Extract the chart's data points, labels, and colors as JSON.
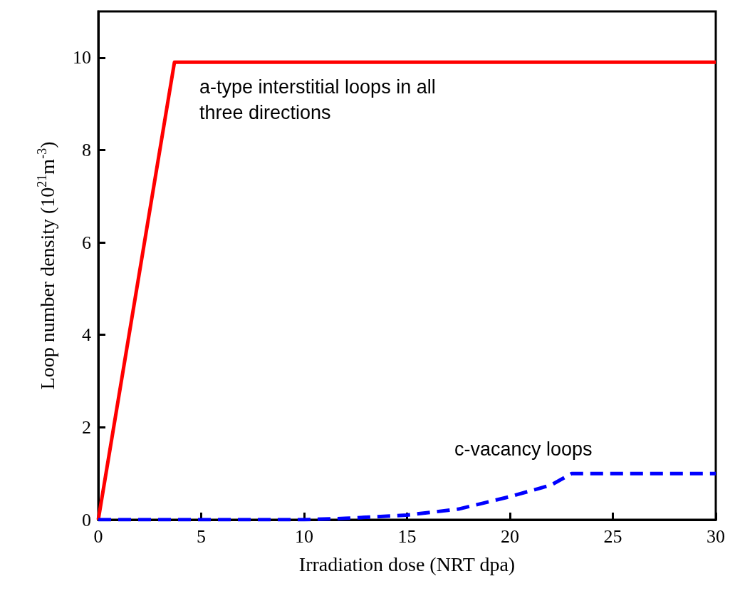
{
  "chart_data": {
    "type": "line",
    "xlabel": "Irradiation dose (NRT dpa)",
    "ylabel": "Loop number density (10$^{21}$m$^{-3}$)",
    "xlim": [
      0,
      30
    ],
    "xticks": [
      0,
      5,
      10,
      15,
      20,
      25,
      30
    ],
    "ylim": [
      0,
      11
    ],
    "yticks": [
      0,
      2,
      4,
      6,
      8,
      10
    ],
    "marker": "none",
    "series": [
      {
        "color": "#ff0000",
        "line_style": "solid",
        "x": [
          0,
          3.7,
          30
        ],
        "values": [
          0,
          9.9,
          9.9
        ]
      },
      {
        "color": "#0000ff",
        "line_style": "dashed",
        "x": [
          0,
          5,
          10,
          12,
          15,
          17.5,
          20,
          22,
          23,
          30
        ],
        "values": [
          0,
          0,
          0,
          0.03,
          0.1,
          0.23,
          0.5,
          0.75,
          1.0,
          1.0
        ]
      }
    ],
    "annotations": [
      "a-type interstitial loops in all three directions",
      "c-vacancy loops"
    ]
  }
}
